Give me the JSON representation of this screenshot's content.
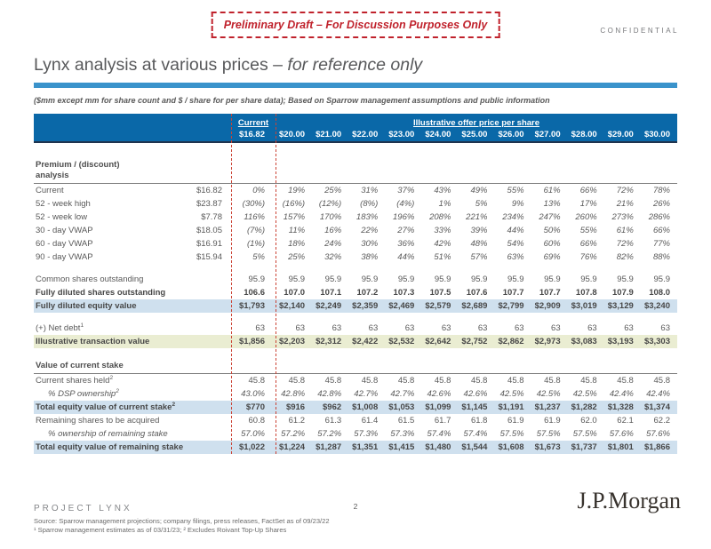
{
  "stamp": {
    "text": "Preliminary Draft – For Discussion Purposes Only"
  },
  "confidential": "CONFIDENTIAL",
  "title": {
    "main": "Lynx analysis at various prices – ",
    "italic": "for reference only"
  },
  "subtitle": "($mm except mm for share count and $ / share for per share data); Based on Sparrow management assumptions and public information",
  "colors": {
    "header_blue": "#0a68a8",
    "title_rule_blue": "#3a93cb",
    "highlight_row_blue": "#cfe0ee",
    "highlight_row_khaki": "#eaedd2",
    "stamp_red": "#c0222c",
    "current_column_dash_red": "#cb4335"
  },
  "table": {
    "current_label": "Current",
    "offer_label": "Illustrative offer price per share",
    "current_price": "$16.82",
    "offer_prices": [
      "$20.00",
      "$21.00",
      "$22.00",
      "$23.00",
      "$24.00",
      "$25.00",
      "$26.00",
      "$27.00",
      "$28.00",
      "$29.00",
      "$30.00"
    ],
    "rows": [
      {
        "type": "spacer",
        "h": 13
      },
      {
        "type": "section",
        "h": 30,
        "lines": [
          "Premium / (discount)",
          "analysis"
        ]
      },
      {
        "type": "data",
        "label": "Current",
        "ref": "$16.82",
        "cur": "0%",
        "italic": true,
        "vals": [
          "19%",
          "25%",
          "31%",
          "37%",
          "43%",
          "49%",
          "55%",
          "61%",
          "66%",
          "72%",
          "78%"
        ]
      },
      {
        "type": "data",
        "label": "52 - week high",
        "ref": "$23.87",
        "cur": "(30%)",
        "italic": true,
        "vals": [
          "(16%)",
          "(12%)",
          "(8%)",
          "(4%)",
          "1%",
          "5%",
          "9%",
          "13%",
          "17%",
          "21%",
          "26%"
        ]
      },
      {
        "type": "data",
        "label": "52 - week low",
        "ref": "$7.78",
        "cur": "116%",
        "italic": true,
        "vals": [
          "157%",
          "170%",
          "183%",
          "196%",
          "208%",
          "221%",
          "234%",
          "247%",
          "260%",
          "273%",
          "286%"
        ]
      },
      {
        "type": "data",
        "label": "30 - day VWAP",
        "ref": "$18.05",
        "cur": "(7%)",
        "italic": true,
        "vals": [
          "11%",
          "16%",
          "22%",
          "27%",
          "33%",
          "39%",
          "44%",
          "50%",
          "55%",
          "61%",
          "66%"
        ]
      },
      {
        "type": "data",
        "label": "60 - day VWAP",
        "ref": "$16.91",
        "cur": "(1%)",
        "italic": true,
        "vals": [
          "18%",
          "24%",
          "30%",
          "36%",
          "42%",
          "48%",
          "54%",
          "60%",
          "66%",
          "72%",
          "77%"
        ]
      },
      {
        "type": "data",
        "label": "90 - day VWAP",
        "ref": "$15.94",
        "cur": "5%",
        "italic": true,
        "vals": [
          "25%",
          "32%",
          "38%",
          "44%",
          "51%",
          "57%",
          "63%",
          "69%",
          "76%",
          "82%",
          "88%"
        ]
      },
      {
        "type": "spacer",
        "h": 10
      },
      {
        "type": "data",
        "label": "Common shares outstanding",
        "ref": "",
        "cur": "95.9",
        "vals": [
          "95.9",
          "95.9",
          "95.9",
          "95.9",
          "95.9",
          "95.9",
          "95.9",
          "95.9",
          "95.9",
          "95.9",
          "95.9"
        ]
      },
      {
        "type": "data",
        "label": "Fully diluted shares outstanding",
        "ref": "",
        "cur": "106.6",
        "bold": true,
        "vals": [
          "107.0",
          "107.1",
          "107.2",
          "107.3",
          "107.5",
          "107.6",
          "107.7",
          "107.7",
          "107.8",
          "107.9",
          "108.0"
        ]
      },
      {
        "type": "data",
        "label": "Fully diluted equity value",
        "ref": "",
        "cur": "$1,793",
        "bold": true,
        "bg": "blue",
        "vals": [
          "$2,140",
          "$2,249",
          "$2,359",
          "$2,469",
          "$2,579",
          "$2,689",
          "$2,799",
          "$2,909",
          "$3,019",
          "$3,129",
          "$3,240"
        ]
      },
      {
        "type": "spacer",
        "h": 10
      },
      {
        "type": "data",
        "label": "(+) Net debt",
        "sup": "1",
        "ref": "",
        "cur": "63",
        "vals": [
          "63",
          "63",
          "63",
          "63",
          "63",
          "63",
          "63",
          "63",
          "63",
          "63",
          "63"
        ]
      },
      {
        "type": "data",
        "label": "Illustrative transaction value",
        "ref": "",
        "cur": "$1,856",
        "bold": true,
        "bg": "khaki",
        "vals": [
          "$2,203",
          "$2,312",
          "$2,422",
          "$2,532",
          "$2,642",
          "$2,752",
          "$2,862",
          "$2,973",
          "$3,083",
          "$3,193",
          "$3,303"
        ]
      },
      {
        "type": "spacer",
        "h": 10
      },
      {
        "type": "section",
        "h": 16,
        "lines": [
          "Value of current stake"
        ]
      },
      {
        "type": "data",
        "label": "Current shares held",
        "sup": "2",
        "ref": "",
        "cur": "45.8",
        "vals": [
          "45.8",
          "45.8",
          "45.8",
          "45.8",
          "45.8",
          "45.8",
          "45.8",
          "45.8",
          "45.8",
          "45.8",
          "45.8"
        ]
      },
      {
        "type": "data",
        "label": "% DSP ownership",
        "sup": "2",
        "ref": "",
        "cur": "43.0%",
        "indent": true,
        "italic": true,
        "vals": [
          "42.8%",
          "42.8%",
          "42.7%",
          "42.7%",
          "42.6%",
          "42.6%",
          "42.5%",
          "42.5%",
          "42.5%",
          "42.4%",
          "42.4%"
        ]
      },
      {
        "type": "data",
        "label": "Total equity value of current stake",
        "sup": "2",
        "ref": "",
        "cur": "$770",
        "bold": true,
        "bg": "blue",
        "vals": [
          "$916",
          "$962",
          "$1,008",
          "$1,053",
          "$1,099",
          "$1,145",
          "$1,191",
          "$1,237",
          "$1,282",
          "$1,328",
          "$1,374"
        ]
      },
      {
        "type": "data",
        "label": "Remaining shares to be acquired",
        "ref": "",
        "cur": "60.8",
        "vals": [
          "61.2",
          "61.3",
          "61.4",
          "61.5",
          "61.7",
          "61.8",
          "61.9",
          "61.9",
          "62.0",
          "62.1",
          "62.2"
        ]
      },
      {
        "type": "data",
        "label": "% ownership of remaining stake",
        "ref": "",
        "cur": "57.0%",
        "indent": true,
        "italic": true,
        "vals": [
          "57.2%",
          "57.2%",
          "57.3%",
          "57.3%",
          "57.4%",
          "57.4%",
          "57.5%",
          "57.5%",
          "57.5%",
          "57.6%",
          "57.6%"
        ]
      },
      {
        "type": "data",
        "label": "Total equity value of remaining stake",
        "ref": "",
        "cur": "$1,022",
        "bold": true,
        "bg": "blue",
        "vals": [
          "$1,224",
          "$1,287",
          "$1,351",
          "$1,415",
          "$1,480",
          "$1,544",
          "$1,608",
          "$1,673",
          "$1,737",
          "$1,801",
          "$1,866"
        ]
      }
    ]
  },
  "footer": {
    "project": "PROJECT LYNX",
    "source": "Source: Sparrow management projections; company filings, press releases, FactSet as of 09/23/22",
    "notes": "¹ Sparrow management estimates as of 03/31/23; ² Excludes Roivant Top-Up Shares",
    "page": "2",
    "logo": "J.P.Morgan"
  }
}
